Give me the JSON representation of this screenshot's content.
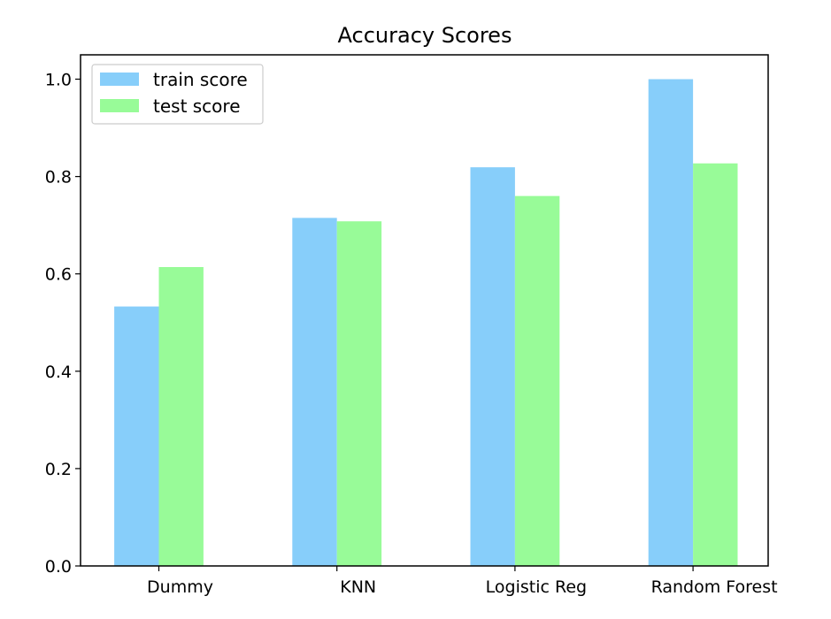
{
  "chart_data": {
    "type": "bar",
    "title": "Accuracy Scores",
    "xlabel": "",
    "ylabel": "",
    "categories": [
      "Dummy",
      "KNN",
      "Logistic Reg",
      "Random Forest"
    ],
    "series": [
      {
        "name": "train score",
        "values": [
          0.533,
          0.715,
          0.819,
          1.0
        ],
        "color": "#87CEFA"
      },
      {
        "name": "test score",
        "values": [
          0.614,
          0.708,
          0.76,
          0.827
        ],
        "color": "#98FB98"
      }
    ],
    "ylim": [
      0,
      1.05
    ],
    "yticks": [
      "0.0",
      "0.2",
      "0.4",
      "0.6",
      "0.8",
      "1.0"
    ],
    "ytick_values": [
      0,
      0.2,
      0.4,
      0.6,
      0.8,
      1.0
    ],
    "grid": false,
    "legend_position": "top-left"
  }
}
